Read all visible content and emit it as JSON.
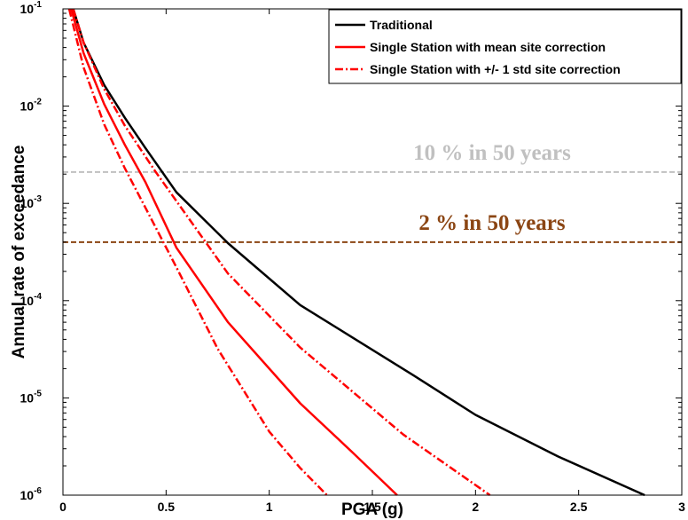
{
  "chart_data": {
    "type": "line",
    "xlabel": "PGA (g)",
    "ylabel": "Annual rate of exceedance",
    "xlim": [
      0,
      3
    ],
    "ylim": [
      1e-06,
      0.1
    ],
    "yscale": "log",
    "x_ticks": [
      "0",
      "0.5",
      "1",
      "1.5",
      "2",
      "2.5",
      "3"
    ],
    "y_ticks": [
      {
        "base": "10",
        "exp": "-6"
      },
      {
        "base": "10",
        "exp": "-5"
      },
      {
        "base": "10",
        "exp": "-4"
      },
      {
        "base": "10",
        "exp": "-3"
      },
      {
        "base": "10",
        "exp": "-2"
      },
      {
        "base": "10",
        "exp": "-1"
      }
    ],
    "legend_position": "top-right",
    "series": [
      {
        "name": "Traditional",
        "color": "#000000",
        "style": "solid",
        "x": [
          0.05,
          0.1,
          0.2,
          0.3,
          0.4,
          0.55,
          0.8,
          1.15,
          1.7,
          2.0,
          2.4,
          2.82
        ],
        "y": [
          0.1,
          0.045,
          0.0165,
          0.0076,
          0.0037,
          0.0013,
          0.00039,
          9e-05,
          1.7e-05,
          6.7e-06,
          2.5e-06,
          1e-06
        ]
      },
      {
        "name": "Single Station with mean site correction",
        "color": "#ff0000",
        "style": "solid",
        "x": [
          0.04,
          0.1,
          0.2,
          0.3,
          0.4,
          0.55,
          0.8,
          1.15,
          1.4,
          1.62
        ],
        "y": [
          0.1,
          0.035,
          0.0105,
          0.004,
          0.00165,
          0.00035,
          6e-05,
          8.8e-06,
          2.8e-06,
          1e-06
        ]
      },
      {
        "name": "Single Station with +/- 1 std site correction",
        "color": "#ff0000",
        "style": "dashdot",
        "x": [
          0.05,
          0.1,
          0.2,
          0.3,
          0.45,
          0.6,
          0.8,
          1.15,
          1.65,
          2.07
        ],
        "y": [
          0.1,
          0.045,
          0.015,
          0.0063,
          0.0021,
          0.00075,
          0.00019,
          3.3e-05,
          4.2e-06,
          1e-06
        ]
      },
      {
        "name": "",
        "color": "#ff0000",
        "style": "dashdot",
        "x": [
          0.03,
          0.1,
          0.2,
          0.3,
          0.4,
          0.55,
          0.75,
          1.0,
          1.15,
          1.28
        ],
        "y": [
          0.1,
          0.025,
          0.0065,
          0.0023,
          0.0009,
          0.00022,
          3.2e-05,
          4.5e-06,
          1.9e-06,
          1e-06
        ]
      }
    ],
    "reference_lines": [
      {
        "y": 0.0021,
        "label": "10 % in 50 years",
        "color": "#c0c0c0"
      },
      {
        "y": 0.0004,
        "label": "2 % in 50 years",
        "color": "#8b4513"
      }
    ]
  }
}
